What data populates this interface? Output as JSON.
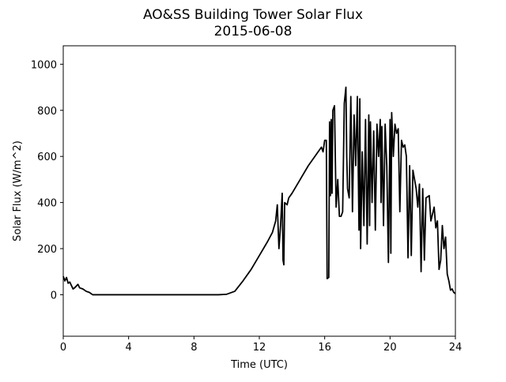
{
  "chart_data": {
    "type": "line",
    "title": "AO&SS Building Tower Solar Flux",
    "subtitle": "2015-06-08",
    "x_label": "Time (UTC)",
    "y_label": "Solar Flux (W/m^2)",
    "xlim": [
      0,
      24
    ],
    "xticks": [
      0,
      4,
      8,
      12,
      16,
      20,
      24
    ],
    "ylim": [
      -180,
      1080
    ],
    "yticks": [
      0,
      200,
      400,
      600,
      800,
      1000
    ],
    "x": [
      0,
      0.1,
      0.2,
      0.3,
      0.4,
      0.5,
      0.6,
      0.7,
      0.9,
      1.0,
      1.2,
      1.4,
      1.6,
      1.8,
      2,
      4,
      8,
      9.5,
      10,
      10.5,
      11,
      11.5,
      12,
      12.5,
      12.8,
      13,
      13.1,
      13.2,
      13.3,
      13.4,
      13.45,
      13.5,
      13.55,
      13.7,
      13.8,
      14,
      14.5,
      15,
      15.5,
      15.8,
      15.9,
      16,
      16.1,
      16.15,
      16.25,
      16.3,
      16.35,
      16.4,
      16.45,
      16.5,
      16.6,
      16.7,
      16.8,
      16.9,
      17.0,
      17.1,
      17.2,
      17.3,
      17.35,
      17.4,
      17.5,
      17.6,
      17.7,
      17.8,
      17.9,
      18.0,
      18.1,
      18.15,
      18.2,
      18.3,
      18.4,
      18.5,
      18.6,
      18.7,
      18.75,
      18.8,
      18.9,
      19.0,
      19.1,
      19.2,
      19.3,
      19.4,
      19.45,
      19.5,
      19.6,
      19.7,
      19.8,
      19.9,
      20.0,
      20.05,
      20.1,
      20.2,
      20.3,
      20.4,
      20.5,
      20.6,
      20.7,
      20.8,
      20.9,
      21.0,
      21.1,
      21.2,
      21.3,
      21.4,
      21.6,
      21.7,
      21.8,
      21.9,
      22.0,
      22.1,
      22.2,
      22.4,
      22.5,
      22.6,
      22.7,
      22.8,
      22.9,
      23.0,
      23.1,
      23.2,
      23.3,
      23.4,
      23.5,
      23.6,
      23.7,
      23.8,
      23.9,
      24
    ],
    "series": [
      {
        "color": "#000000",
        "values": [
          80,
          60,
          75,
          50,
          55,
          40,
          25,
          30,
          45,
          30,
          25,
          15,
          10,
          0,
          0,
          0,
          0,
          0,
          2,
          15,
          60,
          110,
          170,
          230,
          270,
          320,
          390,
          200,
          300,
          440,
          150,
          130,
          400,
          390,
          420,
          440,
          500,
          560,
          610,
          640,
          620,
          670,
          670,
          70,
          75,
          750,
          430,
          760,
          440,
          800,
          820,
          380,
          500,
          340,
          340,
          360,
          830,
          900,
          600,
          460,
          420,
          860,
          360,
          780,
          560,
          860,
          280,
          850,
          200,
          620,
          300,
          760,
          220,
          780,
          300,
          750,
          400,
          710,
          280,
          740,
          600,
          760,
          400,
          730,
          300,
          740,
          560,
          140,
          760,
          180,
          790,
          600,
          740,
          700,
          720,
          360,
          670,
          640,
          650,
          600,
          160,
          560,
          170,
          540,
          460,
          380,
          480,
          100,
          460,
          150,
          420,
          430,
          320,
          350,
          380,
          290,
          320,
          110,
          150,
          300,
          200,
          250,
          90,
          60,
          20,
          25,
          10,
          5
        ]
      }
    ]
  }
}
